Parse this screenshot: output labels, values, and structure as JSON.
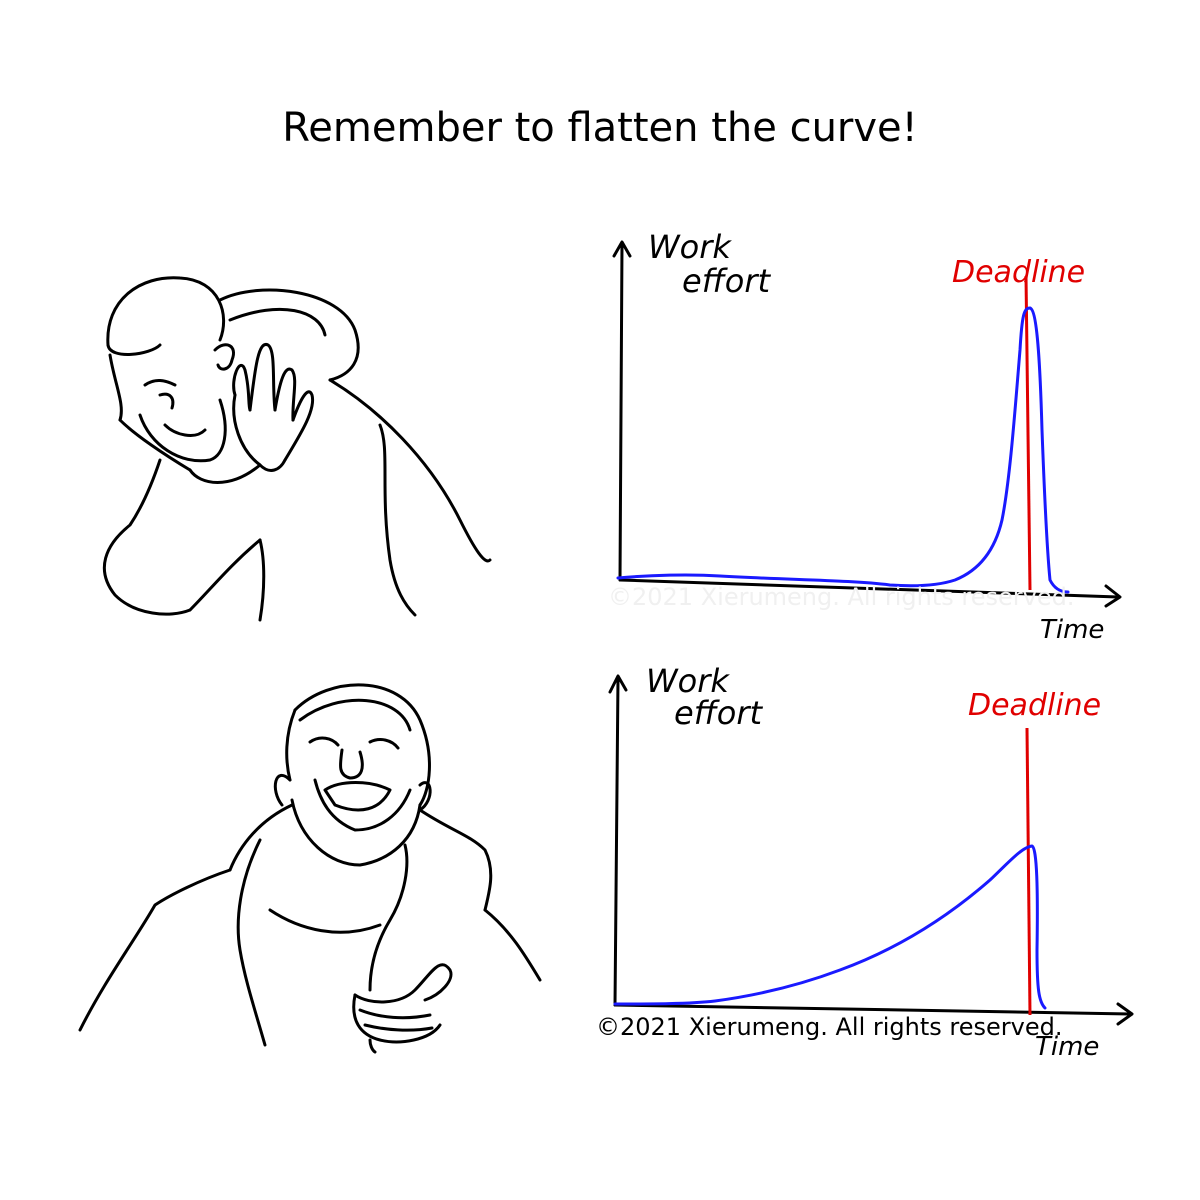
{
  "title": "Remember to flatten the curve!",
  "top_panel": {
    "ylabel_line1": "Work",
    "ylabel_line2": "effort",
    "xlabel": "Time",
    "deadline_label": "Deadline",
    "watermark": "©2021 Xierumeng. All rights reserved."
  },
  "bottom_panel": {
    "ylabel_line1": "Work",
    "ylabel_line2": "effort",
    "xlabel": "Time",
    "deadline_label": "Deadline",
    "watermark": "©2021 Xierumeng. All rights reserved."
  },
  "colors": {
    "curve": "#1a1aff",
    "deadline": "#e00000",
    "ink": "#000000"
  },
  "figures": {
    "top": "disapproving-person",
    "bottom": "approving-person"
  }
}
